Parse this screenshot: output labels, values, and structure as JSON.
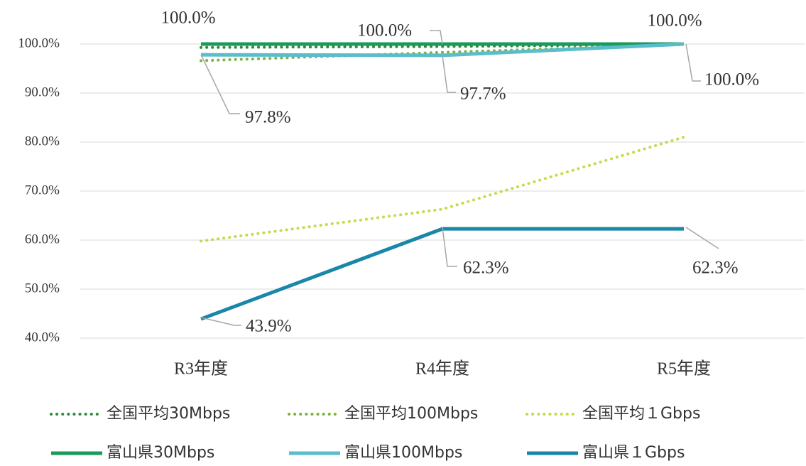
{
  "chart_data": {
    "type": "line",
    "categories": [
      "R3年度",
      "R4年度",
      "R5年度"
    ],
    "ylim": [
      40,
      100
    ],
    "yticks": [
      {
        "value": 40,
        "label": "40.0%"
      },
      {
        "value": 50,
        "label": "50.0%"
      },
      {
        "value": 60,
        "label": "60.0%"
      },
      {
        "value": 70,
        "label": "70.0%"
      },
      {
        "value": 80,
        "label": "80.0%"
      },
      {
        "value": 90,
        "label": "90.0%"
      },
      {
        "value": 100,
        "label": "100.0%"
      }
    ],
    "grid": true,
    "series": [
      {
        "name": "全国平均30Mbps",
        "color": "#2e8b3e",
        "style": "dotted",
        "values": [
          99.3,
          99.5,
          99.9
        ]
      },
      {
        "name": "全国平均100Mbps",
        "color": "#7ab43c",
        "style": "dotted",
        "values": [
          96.6,
          98.3,
          99.9
        ]
      },
      {
        "name": "全国平均１Gbps",
        "color": "#c5d94a",
        "style": "dotted",
        "values": [
          59.8,
          66.3,
          81.0
        ]
      },
      {
        "name": "富山県30Mbps",
        "color": "#1a9a5a",
        "style": "solid",
        "values": [
          100,
          100,
          100
        ],
        "value_labels": [
          "100.0%",
          "100.0%",
          "100.0%"
        ]
      },
      {
        "name": "富山県100Mbps",
        "color": "#5bbccc",
        "style": "solid",
        "values": [
          97.8,
          97.7,
          100
        ],
        "value_labels": [
          "97.8%",
          "97.7%",
          "100.0%"
        ]
      },
      {
        "name": "富山県１Gbps",
        "color": "#1a87a8",
        "style": "solid",
        "values": [
          43.9,
          62.3,
          62.3
        ],
        "value_labels": [
          "43.9%",
          "62.3%",
          "62.3%"
        ]
      }
    ]
  }
}
